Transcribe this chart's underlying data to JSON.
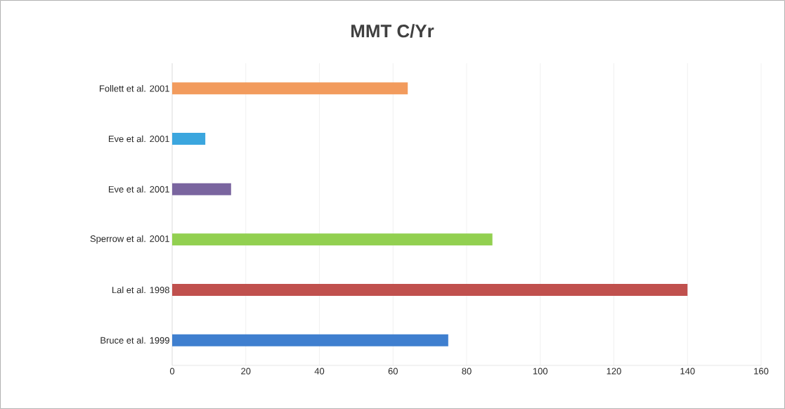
{
  "chart_data": {
    "type": "bar",
    "orientation": "horizontal",
    "title": "MMT C/Yr",
    "categories": [
      "Follett et al. 2001",
      "Eve et al. 2001",
      "Eve et al. 2001",
      "Sperrow et al. 2001",
      "Lal et al. 1998",
      "Bruce et al. 1999"
    ],
    "values": [
      64,
      9,
      16,
      87,
      140,
      75
    ],
    "colors": [
      "#f29b5d",
      "#3ba6de",
      "#7a659f",
      "#92d050",
      "#c0504d",
      "#3f7fcf"
    ],
    "xlim": [
      0,
      160
    ],
    "xticks": [
      0,
      20,
      40,
      60,
      80,
      100,
      120,
      140,
      160
    ],
    "grid": "x"
  }
}
